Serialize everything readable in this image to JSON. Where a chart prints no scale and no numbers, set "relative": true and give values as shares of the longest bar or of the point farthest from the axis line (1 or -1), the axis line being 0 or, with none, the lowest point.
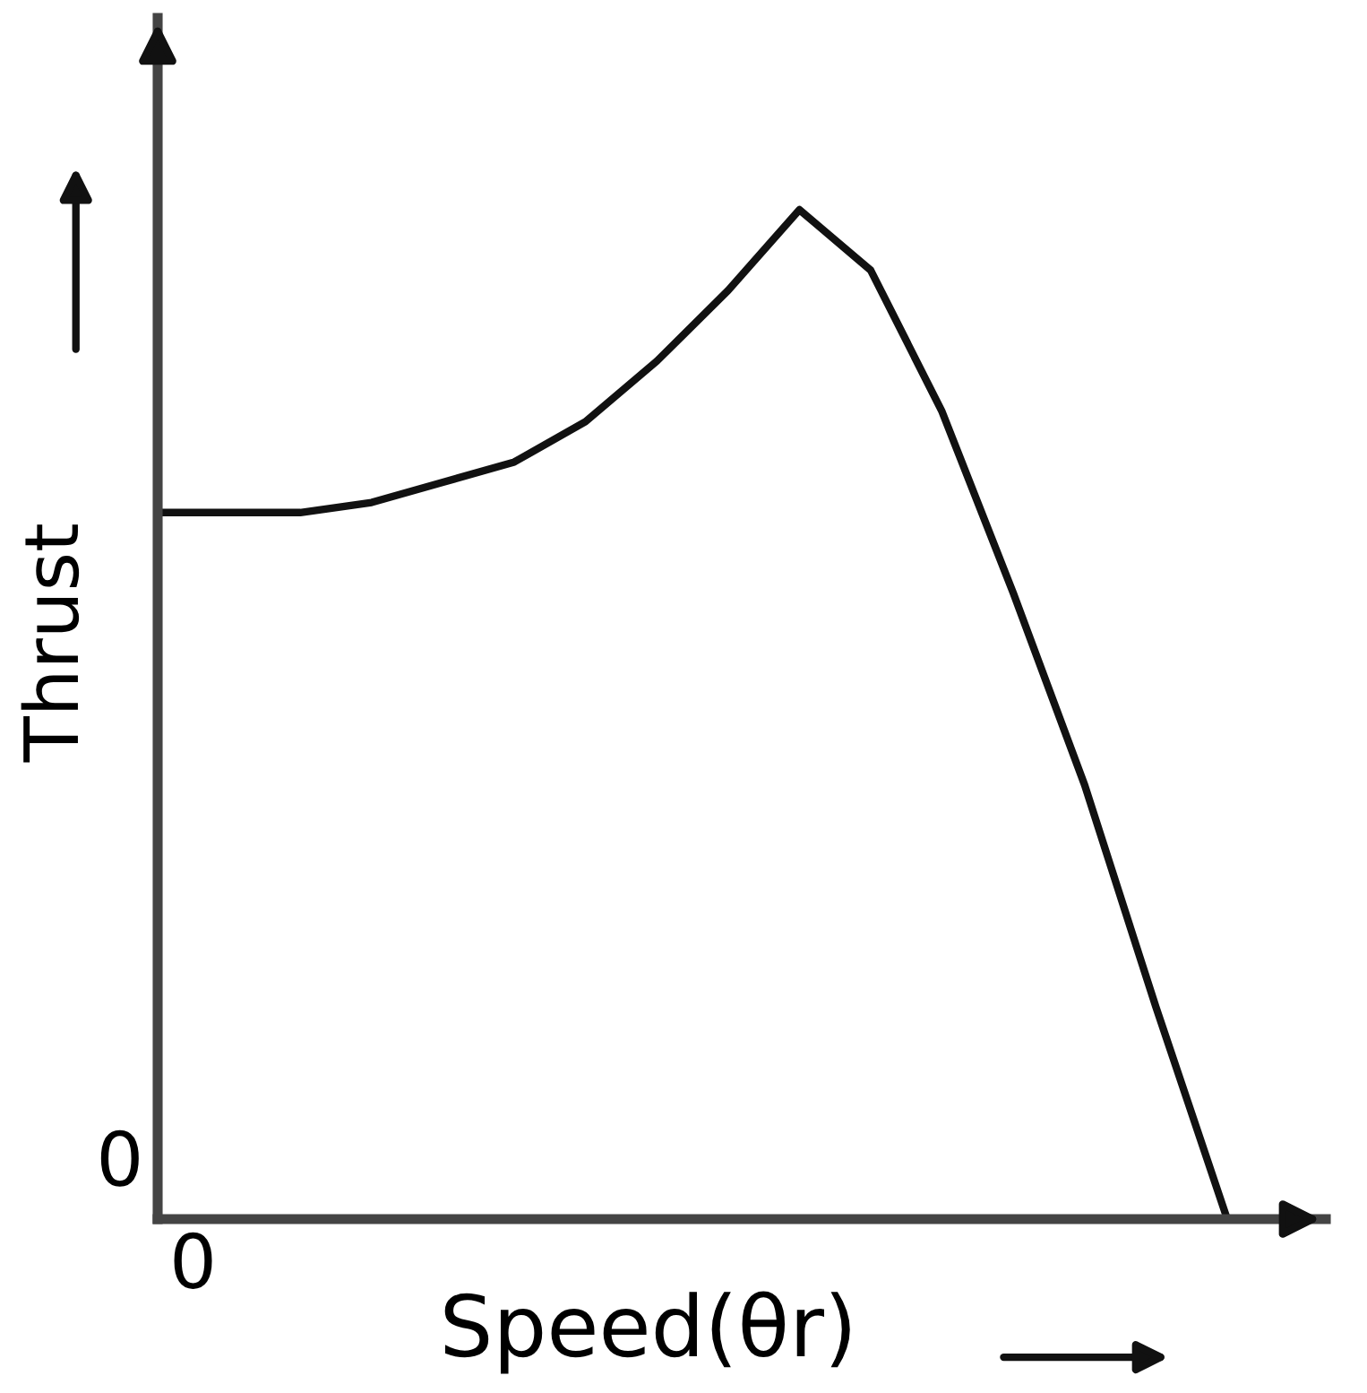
{
  "chart_data": {
    "type": "line",
    "xlabel": "Speed(θr)",
    "ylabel": "Thrust",
    "relative": true,
    "color": "#111111",
    "categories": [
      null,
      null,
      null,
      null,
      null,
      null,
      null,
      null,
      null,
      null,
      null,
      null,
      null,
      null,
      null,
      null
    ],
    "values": [
      0.7,
      0.7,
      0.7,
      0.71,
      0.73,
      0.75,
      0.79,
      0.85,
      0.92,
      1.0,
      0.94,
      0.8,
      0.62,
      0.43,
      0.21,
      0
    ],
    "annotations": [
      "0",
      "0"
    ],
    "grid": false,
    "legend": false,
    "marker": "none",
    "line_style": "solid"
  }
}
